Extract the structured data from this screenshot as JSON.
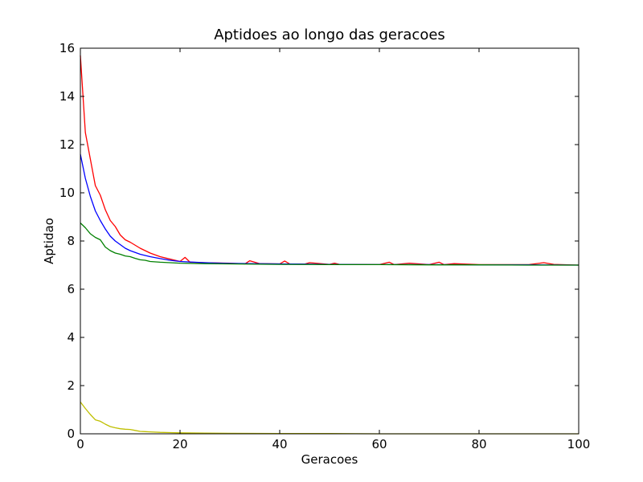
{
  "chart_data": {
    "type": "line",
    "title": "Aptidoes ao longo das geracoes",
    "xlabel": "Geracoes",
    "ylabel": "Aptidao",
    "xlim": [
      0,
      100
    ],
    "ylim": [
      0,
      16
    ],
    "xticks": [
      0,
      20,
      40,
      60,
      80,
      100
    ],
    "yticks": [
      0,
      2,
      4,
      6,
      8,
      10,
      12,
      14,
      16
    ],
    "grid": false,
    "legend": "none",
    "series": [
      {
        "color": "#ff0000",
        "x": [
          0,
          1,
          2,
          3,
          4,
          5,
          6,
          7,
          8,
          9,
          10,
          12,
          14,
          16,
          18,
          20,
          21,
          22,
          25,
          30,
          33,
          34,
          36,
          40,
          41,
          42,
          45,
          46,
          50,
          51,
          52,
          55,
          60,
          62,
          63,
          66,
          70,
          72,
          73,
          75,
          80,
          85,
          90,
          93,
          95,
          100
        ],
        "y": [
          15.7,
          12.5,
          11.4,
          10.3,
          9.9,
          9.3,
          8.85,
          8.6,
          8.25,
          8.05,
          7.95,
          7.7,
          7.5,
          7.35,
          7.25,
          7.15,
          7.32,
          7.12,
          7.1,
          7.08,
          7.05,
          7.18,
          7.06,
          7.05,
          7.17,
          7.05,
          7.04,
          7.1,
          7.03,
          7.08,
          7.03,
          7.03,
          7.02,
          7.12,
          7.02,
          7.08,
          7.02,
          7.12,
          7.02,
          7.06,
          7.02,
          7.02,
          7.02,
          7.1,
          7.03,
          7.0
        ]
      },
      {
        "color": "#0000ff",
        "x": [
          0,
          1,
          2,
          3,
          4,
          5,
          6,
          7,
          8,
          9,
          10,
          12,
          14,
          16,
          18,
          20,
          25,
          30,
          40,
          50,
          60,
          70,
          80,
          90,
          100
        ],
        "y": [
          11.6,
          10.6,
          9.85,
          9.25,
          8.85,
          8.5,
          8.2,
          8.0,
          7.85,
          7.7,
          7.6,
          7.45,
          7.35,
          7.27,
          7.2,
          7.15,
          7.1,
          7.07,
          7.05,
          7.03,
          7.02,
          7.02,
          7.01,
          7.01,
          7.0
        ]
      },
      {
        "color": "#008000",
        "x": [
          0,
          1,
          2,
          3,
          4,
          5,
          6,
          7,
          8,
          9,
          10,
          11,
          12,
          13,
          14,
          16,
          18,
          20,
          25,
          30,
          40,
          50,
          60,
          70,
          80,
          90,
          100
        ],
        "y": [
          8.75,
          8.55,
          8.3,
          8.15,
          8.05,
          7.75,
          7.6,
          7.5,
          7.45,
          7.38,
          7.35,
          7.28,
          7.22,
          7.2,
          7.15,
          7.12,
          7.1,
          7.08,
          7.06,
          7.05,
          7.03,
          7.02,
          7.02,
          7.01,
          7.01,
          7.0,
          7.0
        ]
      },
      {
        "color": "#bfbf00",
        "x": [
          0,
          1,
          2,
          3,
          4,
          5,
          6,
          7,
          8,
          9,
          10,
          11,
          12,
          13,
          14,
          16,
          18,
          20,
          25,
          30,
          40,
          50,
          60,
          70,
          80,
          90,
          100
        ],
        "y": [
          1.32,
          1.05,
          0.8,
          0.58,
          0.52,
          0.4,
          0.3,
          0.25,
          0.21,
          0.19,
          0.18,
          0.14,
          0.1,
          0.09,
          0.08,
          0.06,
          0.05,
          0.04,
          0.03,
          0.02,
          0.01,
          0.01,
          0.0,
          0.0,
          0.0,
          0.0,
          0.0
        ]
      }
    ]
  }
}
